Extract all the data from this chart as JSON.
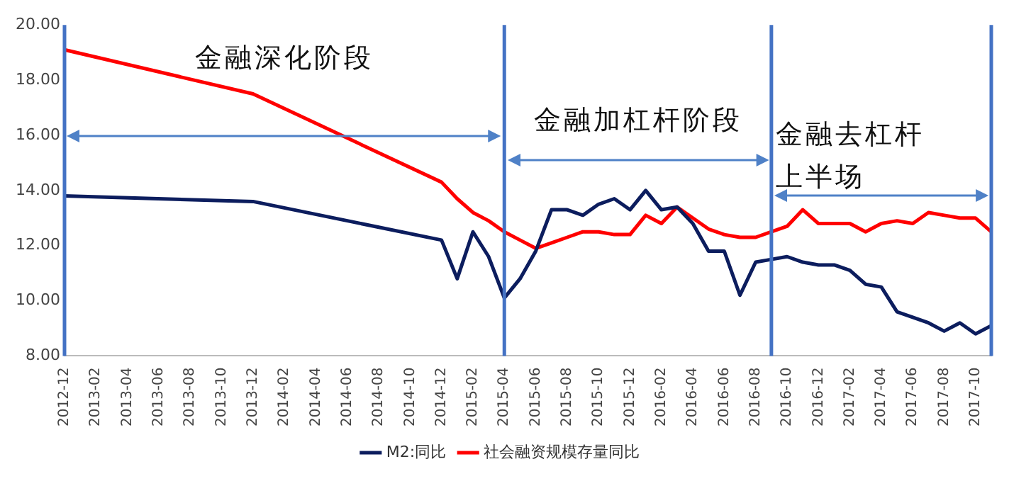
{
  "chart_data": {
    "type": "line",
    "x": [
      "2012-12",
      "2013-12",
      "2014-12",
      "2015-01",
      "2015-02",
      "2015-03",
      "2015-04",
      "2015-05",
      "2015-06",
      "2015-07",
      "2015-08",
      "2015-09",
      "2015-10",
      "2015-11",
      "2015-12",
      "2016-01",
      "2016-02",
      "2016-03",
      "2016-04",
      "2016-05",
      "2016-06",
      "2016-07",
      "2016-08",
      "2016-09",
      "2016-10",
      "2016-11",
      "2016-12",
      "2017-01",
      "2017-02",
      "2017-03",
      "2017-04",
      "2017-05",
      "2017-06",
      "2017-07",
      "2017-08",
      "2017-09",
      "2017-10",
      "2017-11"
    ],
    "series": [
      {
        "name": "M2:同比",
        "color": "#0c1d5e",
        "values": [
          13.8,
          13.6,
          12.2,
          10.8,
          12.5,
          11.6,
          10.1,
          10.8,
          11.8,
          13.3,
          13.3,
          13.1,
          13.5,
          13.7,
          13.3,
          14.0,
          13.3,
          13.4,
          12.8,
          11.8,
          11.8,
          10.2,
          11.4,
          11.5,
          11.6,
          11.4,
          11.3,
          11.3,
          11.1,
          10.6,
          10.5,
          9.6,
          9.4,
          9.2,
          8.9,
          9.2,
          8.8,
          9.1
        ]
      },
      {
        "name": "社会融资规模存量同比",
        "color": "#ff0000",
        "values": [
          19.1,
          17.5,
          14.3,
          13.7,
          13.2,
          12.9,
          12.5,
          12.2,
          11.9,
          12.1,
          12.3,
          12.5,
          12.5,
          12.4,
          12.4,
          13.1,
          12.8,
          13.4,
          13.0,
          12.6,
          12.4,
          12.3,
          12.3,
          12.5,
          12.7,
          13.3,
          12.8,
          12.8,
          12.8,
          12.5,
          12.8,
          12.9,
          12.8,
          13.2,
          13.1,
          13.0,
          13.0,
          12.5
        ]
      }
    ],
    "xlim": [
      "2012-12",
      "2017-11"
    ],
    "xticks": [
      "2012-12",
      "2013-02",
      "2013-04",
      "2013-06",
      "2013-08",
      "2013-10",
      "2013-12",
      "2014-02",
      "2014-04",
      "2014-06",
      "2014-08",
      "2014-10",
      "2014-12",
      "2015-02",
      "2015-04",
      "2015-06",
      "2015-08",
      "2015-10",
      "2015-12",
      "2016-02",
      "2016-04",
      "2016-06",
      "2016-08",
      "2016-10",
      "2016-12",
      "2017-02",
      "2017-04",
      "2017-06",
      "2017-08",
      "2017-10"
    ],
    "ylim": [
      8,
      20
    ],
    "yticks": [
      {
        "value": 8,
        "label": "8.00"
      },
      {
        "value": 10,
        "label": "10.00"
      },
      {
        "value": 12,
        "label": "12.00"
      },
      {
        "value": 14,
        "label": "14.00"
      },
      {
        "value": 16,
        "label": "16.00"
      },
      {
        "value": 18,
        "label": "18.00"
      },
      {
        "value": 20,
        "label": "20.00"
      }
    ],
    "ref_lines": [
      {
        "axis": "x",
        "value": "2012-12",
        "color": "#4472c4"
      },
      {
        "axis": "x",
        "value": "2015-04",
        "color": "#4472c4"
      },
      {
        "axis": "x",
        "value": "2016-09",
        "color": "#4472c4"
      },
      {
        "axis": "x",
        "value": "2017-11",
        "color": "#4472c4"
      }
    ],
    "annotations": [
      "金融深化阶段",
      "金融加杠杆阶段",
      "金融去杠杆上半场"
    ],
    "grid": false,
    "legend": "bottom",
    "marker": "none",
    "line_style": "solid"
  }
}
